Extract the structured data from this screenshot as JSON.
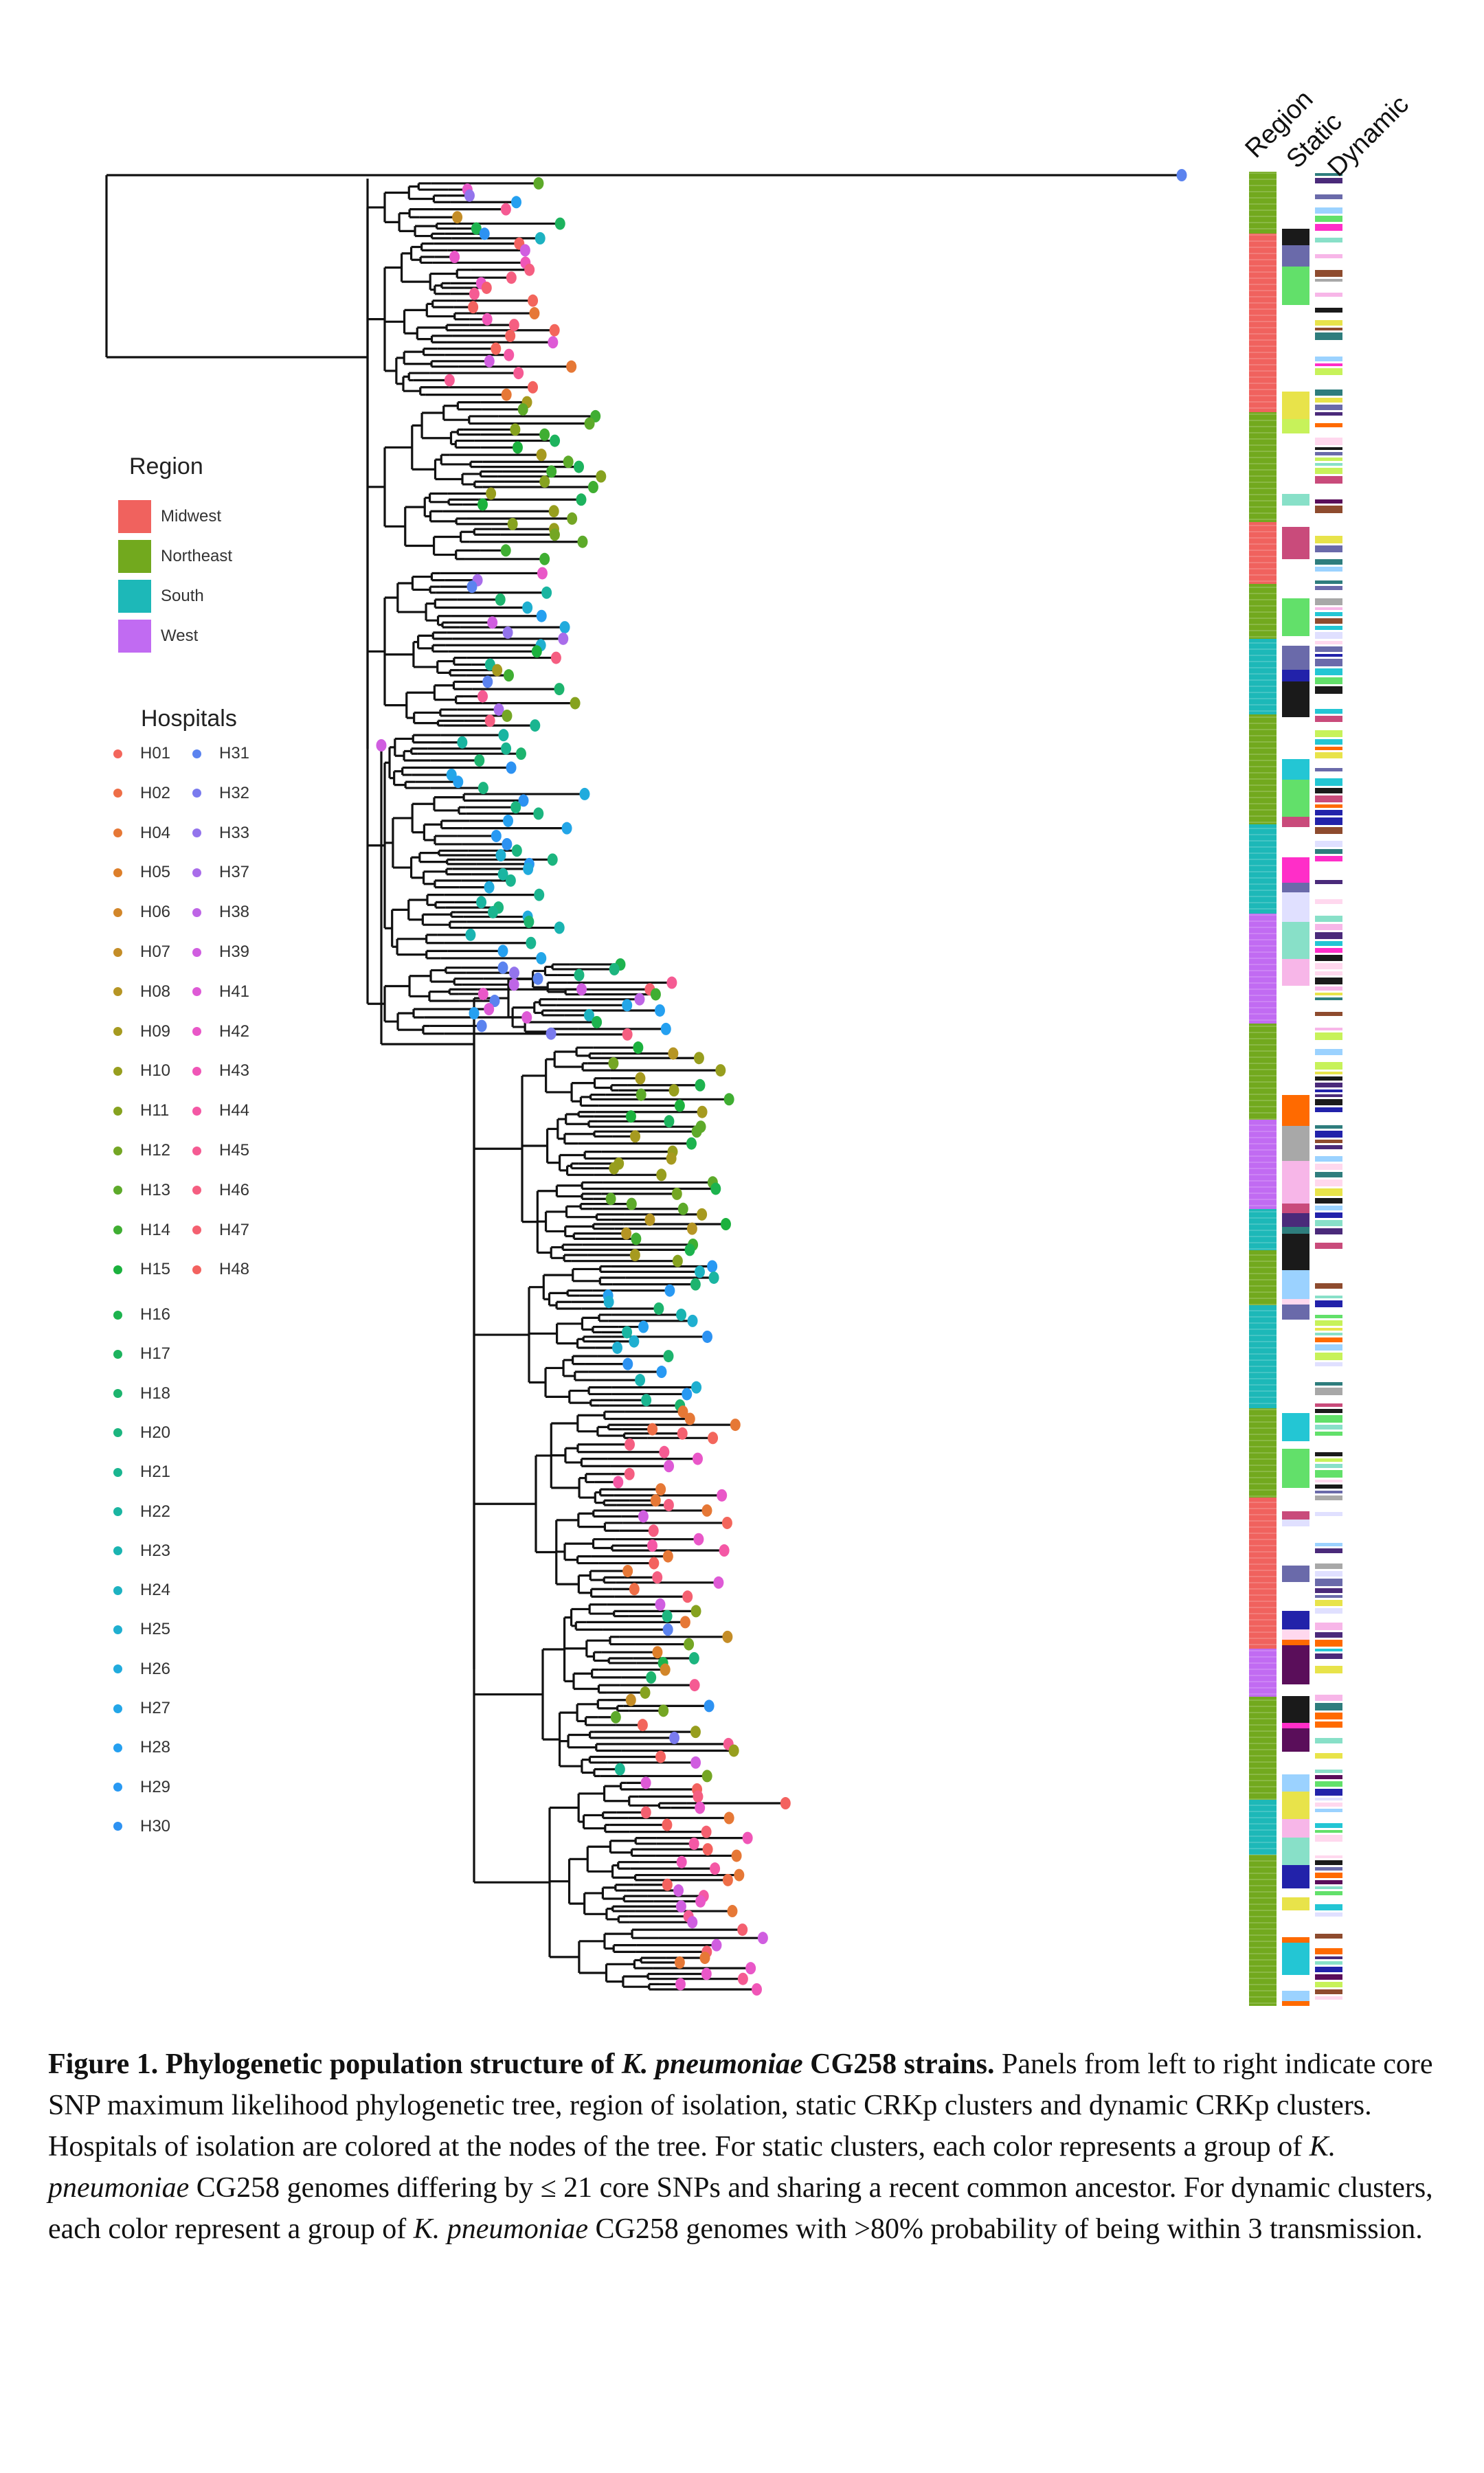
{
  "column_headers": [
    "Region",
    "Static",
    "Dynamic"
  ],
  "region_legend": {
    "title": "Region",
    "items": [
      {
        "label": "Midwest",
        "color": "#F0625E"
      },
      {
        "label": "Northeast",
        "color": "#72A91E"
      },
      {
        "label": "South",
        "color": "#1DB8B8"
      },
      {
        "label": "West",
        "color": "#C16BF2"
      }
    ]
  },
  "hospital_legend": {
    "title": "Hospitals",
    "left_column": [
      {
        "label": "H01",
        "color": "#F3665C"
      },
      {
        "label": "H02",
        "color": "#EE6E47"
      },
      {
        "label": "H04",
        "color": "#E67836"
      },
      {
        "label": "H05",
        "color": "#DD7F2A"
      },
      {
        "label": "H06",
        "color": "#D2862A"
      },
      {
        "label": "H07",
        "color": "#C48D27"
      },
      {
        "label": "H08",
        "color": "#B69524"
      },
      {
        "label": "H09",
        "color": "#A69A1F"
      },
      {
        "label": "H10",
        "color": "#979E1E"
      },
      {
        "label": "H11",
        "color": "#86A21F"
      },
      {
        "label": "H12",
        "color": "#74A624"
      },
      {
        "label": "H13",
        "color": "#5DAA2A"
      },
      {
        "label": "H14",
        "color": "#3FAE32"
      },
      {
        "label": "H15",
        "color": "#1BB13D"
      },
      {
        "label": "H16",
        "color": "#1DB34E"
      },
      {
        "label": "H17",
        "color": "#1DB35E"
      },
      {
        "label": "H18",
        "color": "#1DB46E"
      },
      {
        "label": "H20",
        "color": "#1CB57F"
      },
      {
        "label": "H21",
        "color": "#1AB590"
      },
      {
        "label": "H22",
        "color": "#1AB5A1"
      },
      {
        "label": "H23",
        "color": "#1AB4B1"
      },
      {
        "label": "H24",
        "color": "#1DB2C1"
      },
      {
        "label": "H25",
        "color": "#1FAFD0"
      },
      {
        "label": "H26",
        "color": "#21ABDD"
      },
      {
        "label": "H27",
        "color": "#23A6E8"
      },
      {
        "label": "H28",
        "color": "#25A0F0"
      },
      {
        "label": "H29",
        "color": "#2899F3"
      },
      {
        "label": "H30",
        "color": "#2D92F2"
      }
    ],
    "right_column": [
      {
        "label": "H31",
        "color": "#5B83EF"
      },
      {
        "label": "H32",
        "color": "#7A7BEE"
      },
      {
        "label": "H33",
        "color": "#9374EC"
      },
      {
        "label": "H37",
        "color": "#A96DEA"
      },
      {
        "label": "H38",
        "color": "#BE65E6"
      },
      {
        "label": "H39",
        "color": "#D05EE0"
      },
      {
        "label": "H41",
        "color": "#DE5AD6"
      },
      {
        "label": "H42",
        "color": "#E957C8"
      },
      {
        "label": "H43",
        "color": "#F056B7"
      },
      {
        "label": "H44",
        "color": "#F458A5"
      },
      {
        "label": "H45",
        "color": "#F55B93"
      },
      {
        "label": "H46",
        "color": "#F55E81"
      },
      {
        "label": "H47",
        "color": "#F46070"
      },
      {
        "label": "H48",
        "color": "#F3625F"
      }
    ]
  },
  "caption": {
    "bold_prefix": "Figure 1. Phylogenetic population structure of ",
    "bold_italic": "K. pneumoniae",
    "bold_suffix": " CG258 strains.",
    "text_1": " Panels from left to right indicate core SNP maximum likelihood phylogenetic tree, region of isolation, static CRKp clusters and dynamic CRKp clusters. Hospitals of isolation are colored at the nodes of the tree. For static clusters, each color represents a group of ",
    "italic_1": "K. pneumoniae",
    "text_2": " CG258 genomes differing by ≤ 21 core SNPs and sharing a recent common ancestor. For dynamic clusters, each color represent a group of ",
    "italic_2": "K. pneumoniae",
    "text_3": " CG258 genomes with >80% probability of being within 3 transmission."
  },
  "colors": {
    "tree_line": "#111111",
    "midwest": "#F0625E",
    "northeast": "#72A91E",
    "south": "#1DB8B8",
    "west": "#C16BF2"
  }
}
